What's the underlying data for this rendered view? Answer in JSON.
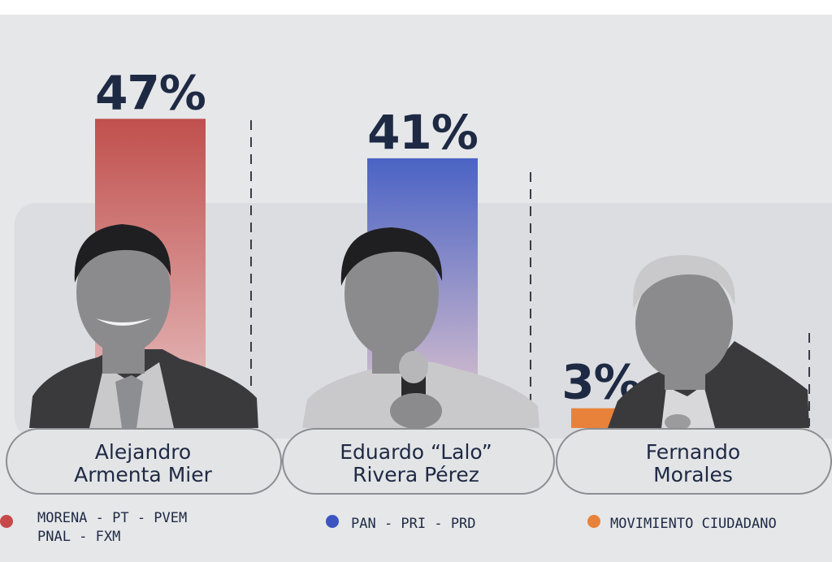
{
  "chart_data": {
    "type": "bar",
    "categories": [
      "Alejandro Armenta Mier",
      "Eduardo “Lalo” Rivera Pérez",
      "Fernando Morales"
    ],
    "values": [
      47,
      41,
      3
    ],
    "value_labels": [
      "47%",
      "41%",
      "3%"
    ],
    "ylim": [
      0,
      50
    ],
    "candidates": [
      {
        "name_lines": [
          "Alejandro",
          "Armenta Mier"
        ],
        "value": 47,
        "label": "47%",
        "color_top": "#c0504d",
        "color_bottom": "#e8c4c5",
        "dot_color": "#c64848",
        "party_lines": [
          "MORENA - PT - PVEM",
          "PNAL - FXM"
        ]
      },
      {
        "name_lines": [
          "Eduardo “Lalo”",
          "Rivera Pérez"
        ],
        "value": 41,
        "label": "41%",
        "color_top": "#4a63c4",
        "color_bottom": "#e6c9cf",
        "dot_color": "#3d55c0",
        "party_lines": [
          "PAN - PRI - PRD"
        ]
      },
      {
        "name_lines": [
          "Fernando",
          "Morales"
        ],
        "value": 3,
        "label": "3%",
        "color_top": "#e8823a",
        "color_bottom": "#e8823a",
        "dot_color": "#e8823a",
        "party_lines": [
          "MOVIMIENTO CIUDADANO"
        ]
      }
    ]
  }
}
